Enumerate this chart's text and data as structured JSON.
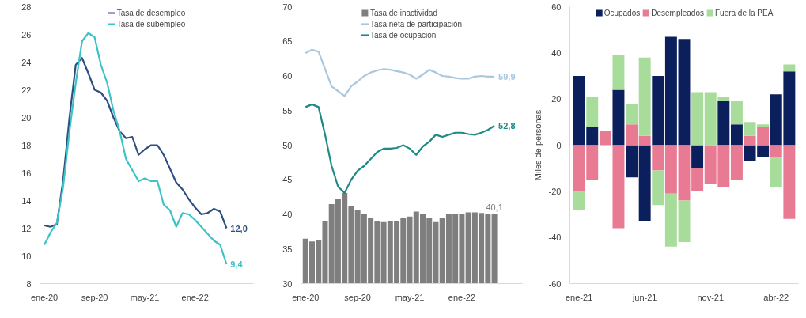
{
  "chart_data": [
    {
      "type": "line",
      "categories": [
        "ene-20",
        null,
        null,
        null,
        null,
        null,
        null,
        null,
        "sep-20",
        null,
        null,
        null,
        null,
        null,
        null,
        null,
        "may-21",
        null,
        null,
        null,
        null,
        null,
        null,
        null,
        "ene-22",
        null,
        null,
        null,
        null,
        null
      ],
      "ylim": [
        8,
        28
      ],
      "yticks": [
        8,
        10,
        12,
        14,
        16,
        18,
        20,
        22,
        24,
        26,
        28
      ],
      "grid": false,
      "legend": "top",
      "series": [
        {
          "name": "Tasa de desempleo",
          "color": "#2e4f7f",
          "values": [
            12.2,
            12.1,
            12.3,
            15.5,
            20,
            23.8,
            24.3,
            23.2,
            22,
            21.8,
            21.2,
            20,
            19,
            18.5,
            18.6,
            17.3,
            17.7,
            18,
            18,
            17.3,
            16.3,
            15.3,
            14.8,
            14.1,
            13.5,
            13,
            13.1,
            13.4,
            13.2,
            12.0
          ],
          "value_labels": [
            null,
            null,
            null,
            null,
            null,
            null,
            null,
            null,
            null,
            null,
            null,
            null,
            null,
            null,
            null,
            null,
            null,
            null,
            null,
            null,
            null,
            null,
            null,
            null,
            null,
            null,
            null,
            null,
            null,
            "12,0"
          ]
        },
        {
          "name": "Tasa de subempleo",
          "color": "#3cc3c8",
          "values": [
            10.8,
            11.7,
            12.4,
            15,
            19,
            22.5,
            25.5,
            26.1,
            25.8,
            23.8,
            22.5,
            20.5,
            19,
            17,
            16.2,
            15.4,
            15.6,
            15.4,
            15.4,
            13.7,
            13.3,
            12.1,
            13.1,
            13,
            12.6,
            12.1,
            11.6,
            11.1,
            10.8,
            9.4
          ],
          "value_labels": [
            null,
            null,
            null,
            null,
            null,
            null,
            null,
            null,
            null,
            null,
            null,
            null,
            null,
            null,
            null,
            null,
            null,
            null,
            null,
            null,
            null,
            null,
            null,
            null,
            null,
            null,
            null,
            null,
            null,
            "9,4"
          ]
        }
      ]
    },
    {
      "type": "line",
      "categories": [
        "ene-20",
        null,
        null,
        null,
        null,
        null,
        null,
        null,
        "sep-20",
        null,
        null,
        null,
        null,
        null,
        null,
        null,
        "may-21",
        null,
        null,
        null,
        null,
        null,
        null,
        null,
        "ene-22",
        null,
        null,
        null,
        null,
        null
      ],
      "ylim": [
        30,
        70
      ],
      "yticks": [
        30,
        35,
        40,
        45,
        50,
        55,
        60,
        65,
        70
      ],
      "grid": false,
      "legend": "top",
      "series": [
        {
          "name": "Tasa de inactividad",
          "type": "bar",
          "color": "#7f7f7f",
          "values": [
            36.5,
            36.1,
            36.3,
            39.1,
            41.5,
            42.3,
            43.1,
            41.2,
            40.7,
            40,
            39.5,
            39.1,
            38.9,
            39.1,
            39.1,
            39.5,
            39.7,
            40.4,
            40,
            39.5,
            38.9,
            39.5,
            40,
            40,
            40.1,
            40.3,
            40.3,
            40.2,
            40,
            40.1
          ],
          "value_labels": [
            null,
            null,
            null,
            null,
            null,
            null,
            null,
            null,
            null,
            null,
            null,
            null,
            null,
            null,
            null,
            null,
            null,
            null,
            null,
            null,
            null,
            null,
            null,
            null,
            null,
            null,
            null,
            null,
            null,
            "40,1"
          ]
        },
        {
          "name": "Tasa neta de participación",
          "color": "#a8c8e0",
          "values": [
            63.3,
            63.8,
            63.5,
            61,
            58.5,
            57.8,
            57.1,
            58.5,
            59.2,
            60,
            60.5,
            60.8,
            61,
            60.9,
            60.7,
            60.5,
            60.2,
            59.6,
            60.2,
            60.9,
            60.5,
            60,
            59.9,
            59.7,
            59.6,
            59.6,
            59.9,
            60,
            59.9,
            59.9
          ],
          "value_labels": [
            null,
            null,
            null,
            null,
            null,
            null,
            null,
            null,
            null,
            null,
            null,
            null,
            null,
            null,
            null,
            null,
            null,
            null,
            null,
            null,
            null,
            null,
            null,
            null,
            null,
            null,
            null,
            null,
            null,
            "59,9"
          ]
        },
        {
          "name": "Tasa de ocupación",
          "color": "#1e8a86",
          "values": [
            55.5,
            55.9,
            55.5,
            51.5,
            47,
            44,
            43.1,
            45,
            46.3,
            47,
            48,
            49,
            49.5,
            49.5,
            49.6,
            50,
            49.5,
            48.6,
            49.8,
            50.5,
            51.5,
            51.2,
            51.5,
            51.8,
            51.8,
            51.6,
            51.5,
            51.8,
            52.2,
            52.8
          ],
          "value_labels": [
            null,
            null,
            null,
            null,
            null,
            null,
            null,
            null,
            null,
            null,
            null,
            null,
            null,
            null,
            null,
            null,
            null,
            null,
            null,
            null,
            null,
            null,
            null,
            null,
            null,
            null,
            null,
            null,
            null,
            "52,8"
          ]
        }
      ]
    },
    {
      "type": "bar",
      "stacked": true,
      "ylabel": "Miles de personas",
      "categories": [
        "ene-21",
        null,
        null,
        null,
        null,
        "jun-21",
        null,
        null,
        null,
        null,
        "nov-21",
        null,
        null,
        null,
        null,
        "abr-22",
        null
      ],
      "ylim": [
        -60,
        60
      ],
      "yticks": [
        -60,
        -40,
        -20,
        0,
        20,
        40,
        60
      ],
      "grid": false,
      "legend": "top",
      "series": [
        {
          "name": "Ocupados",
          "color": "#0b1f5c",
          "values": [
            30,
            8,
            0,
            24,
            -14,
            -33,
            30,
            47,
            46,
            -10,
            0,
            19,
            9,
            -7,
            -5,
            22,
            32
          ]
        },
        {
          "name": "Desempleados",
          "color": "#e87a94",
          "values": [
            -20,
            -15,
            6,
            -36,
            9,
            4,
            -11,
            -21,
            -24,
            -10,
            -17,
            -18,
            -15,
            4,
            8,
            -5,
            -32
          ]
        },
        {
          "name": "Fuera de la PEA",
          "color": "#a8dc9a",
          "values": [
            -8,
            13,
            0,
            15,
            9,
            34,
            -15,
            -23,
            -18,
            23,
            23,
            2,
            10,
            6,
            1,
            -13,
            3
          ]
        }
      ]
    }
  ]
}
